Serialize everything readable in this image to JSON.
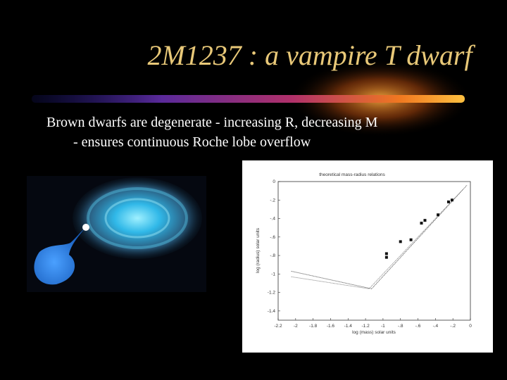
{
  "title": "2M1237 : a vampire T dwarf",
  "body": [
    "Brown dwarfs are degenerate - increasing R, decreasing M",
    "- ensures continuous Roche lobe overflow"
  ],
  "chart_data": {
    "type": "line",
    "title": "theoretical mass-radius relations",
    "x_label": "log (mass) solar units",
    "y_label": "log (radius) solar units",
    "xlim": [
      -2.2,
      0
    ],
    "ylim": [
      -1.5,
      0
    ],
    "xticks": [
      -2.2,
      -2,
      -1.8,
      -1.6,
      -1.4,
      -1.2,
      -1,
      {
        "value": -0.8,
        "label": "-.8"
      },
      {
        "value": -0.6,
        "label": "-.6"
      },
      {
        "value": -0.4,
        "label": "-.4"
      },
      {
        "value": -0.2,
        "label": "-.2"
      },
      0
    ],
    "yticks": [
      0,
      {
        "value": -0.2,
        "label": "-.2"
      },
      {
        "value": -0.4,
        "label": "-.4"
      },
      {
        "value": -0.6,
        "label": "-.6"
      },
      {
        "value": -0.8,
        "label": "-.8"
      },
      -1,
      -1.2,
      -1.4
    ],
    "series": [
      {
        "mode": "line",
        "color": "#555555",
        "x": [
          -2.05,
          -1.13,
          -0.04
        ],
        "values": [
          -0.97,
          -1.16,
          -0.04
        ]
      },
      {
        "mode": "line",
        "color": "#888888",
        "x": [
          -2.05,
          -1.16,
          -0.09
        ],
        "values": [
          -1.03,
          -1.16,
          -0.09
        ]
      },
      {
        "mode": "markers",
        "color": "#111111",
        "x": [
          -0.96,
          -0.96,
          -0.8,
          -0.68,
          -0.56,
          -0.52,
          -0.37,
          -0.25,
          -0.21
        ],
        "values": [
          -0.78,
          -0.82,
          -0.65,
          -0.63,
          -0.45,
          -0.42,
          -0.36,
          -0.22,
          -0.2
        ]
      }
    ]
  }
}
